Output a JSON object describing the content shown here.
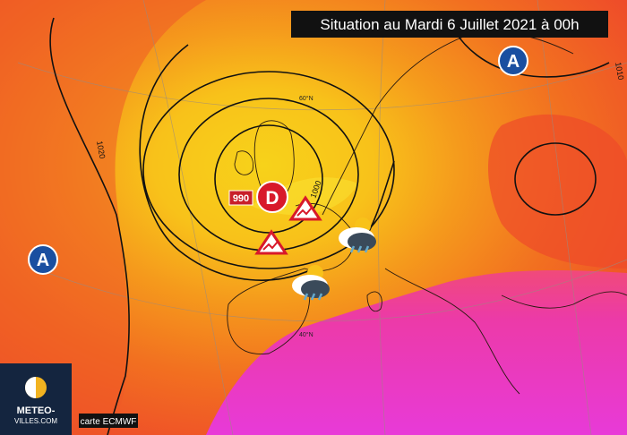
{
  "header": {
    "title": "Situation au Mardi 6 Juillet 2021 à 00h"
  },
  "pressure_centers": [
    {
      "label": "A"
    },
    {
      "label": "A"
    },
    {
      "label": "D",
      "value_label": "990"
    }
  ],
  "isobar_labels": [
    "1020",
    "1000",
    "1010"
  ],
  "latitude_labels": [
    "60°N",
    "40°N"
  ],
  "logo": {
    "line1": "METEO-",
    "line2": "VILLES.COM"
  },
  "source": "carte ECMWF"
}
